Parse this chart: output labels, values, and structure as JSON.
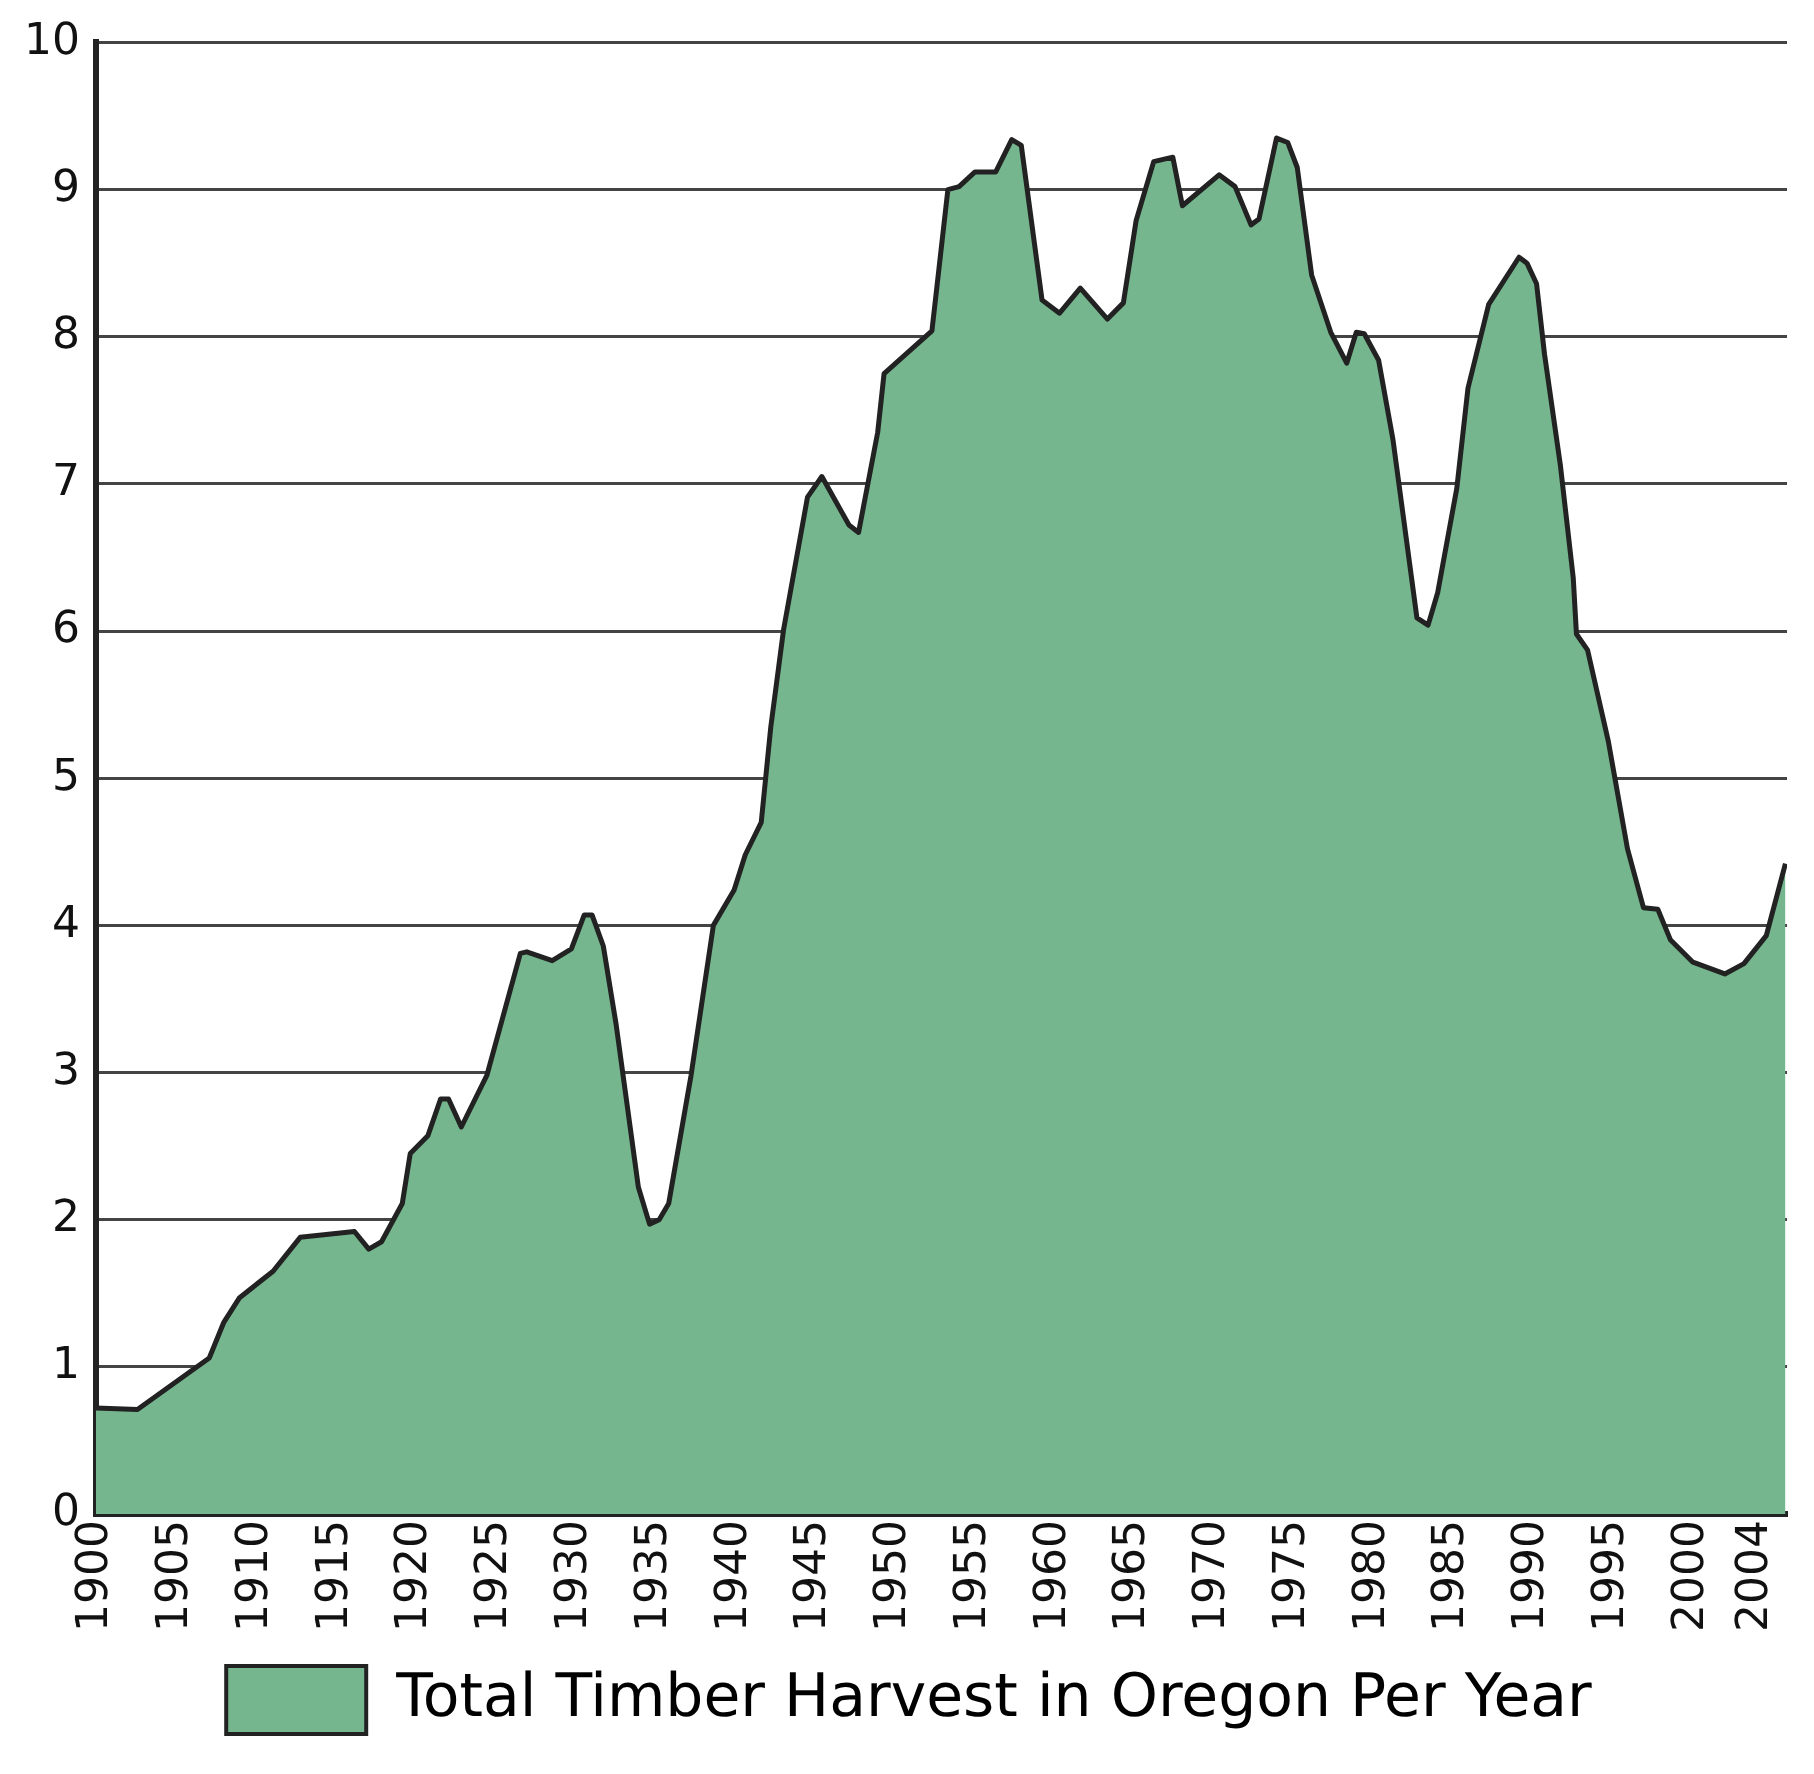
{
  "chart_data": {
    "type": "area",
    "x": [
      1900,
      1902.6,
      1907.1,
      1908,
      1909,
      1911.1,
      1912.8,
      1916.2,
      1917.1,
      1917.9,
      1919.2,
      1919.7,
      1920.8,
      1921.6,
      1922.1,
      1922.9,
      1924.5,
      1926.6,
      1927,
      1928.6,
      1929.8,
      1930.6,
      1931.1,
      1931.8,
      1932.6,
      1934,
      1934.7,
      1935.3,
      1935.9,
      1937.3,
      1938.7,
      1940,
      1940.7,
      1941.7,
      1942.3,
      1943.1,
      1944.6,
      1945.5,
      1947.2,
      1947.8,
      1949,
      1949.4,
      1952.4,
      1953.4,
      1954.1,
      1955.1,
      1956.4,
      1957.4,
      1958,
      1959.3,
      1960.4,
      1961.7,
      1963.4,
      1964.4,
      1965.2,
      1966.3,
      1967.5,
      1968.1,
      1970.4,
      1971.4,
      1972.4,
      1972.9,
      1974,
      1974.7,
      1975.3,
      1976.2,
      1977.4,
      1978.4,
      1979,
      1979.5,
      1980.4,
      1981.3,
      1982.8,
      1983.5,
      1984.1,
      1985.3,
      1986,
      1987.3,
      1989.2,
      1989.7,
      1990.3,
      1990.8,
      1991.8,
      1992.6,
      1992.8,
      1993.5,
      1994.8,
      1996,
      1997,
      1997.9,
      1998.7,
      2000.1,
      2002.1,
      2003.3,
      2004.7,
      2005.9
    ],
    "series": [
      {
        "name": "Total Timber Harvest in Oregon Per Year",
        "color": "#75b68e",
        "values": [
          0.72,
          0.71,
          1.06,
          1.3,
          1.47,
          1.65,
          1.88,
          1.92,
          1.8,
          1.85,
          2.11,
          2.45,
          2.57,
          2.82,
          2.82,
          2.63,
          2.98,
          3.81,
          3.82,
          3.76,
          3.84,
          4.07,
          4.07,
          3.86,
          3.33,
          2.22,
          1.97,
          2,
          2.11,
          2.98,
          4,
          4.24,
          4.48,
          4.7,
          5.35,
          6.01,
          6.91,
          7.05,
          6.72,
          6.67,
          7.35,
          7.75,
          8.04,
          9,
          9.02,
          9.12,
          9.12,
          9.34,
          9.3,
          8.25,
          8.16,
          8.33,
          8.12,
          8.23,
          8.79,
          9.19,
          9.22,
          8.89,
          9.1,
          9.02,
          8.76,
          8.8,
          9.35,
          9.32,
          9.15,
          8.42,
          8.03,
          7.82,
          8.03,
          8.02,
          7.84,
          7.3,
          6.09,
          6.04,
          6.26,
          6.97,
          7.65,
          8.22,
          8.54,
          8.5,
          8.36,
          7.88,
          7.12,
          6.36,
          5.98,
          5.87,
          5.25,
          4.52,
          4.12,
          4.11,
          3.9,
          3.75,
          3.67,
          3.74,
          3.93,
          4.42
        ]
      }
    ],
    "xlim": [
      1900,
      2006
    ],
    "xticks": [
      1900,
      1905,
      1910,
      1915,
      1920,
      1925,
      1930,
      1935,
      1940,
      1945,
      1950,
      1955,
      1960,
      1965,
      1970,
      1975,
      1980,
      1985,
      1990,
      1995,
      2000,
      2004
    ],
    "ylim": [
      0,
      10
    ],
    "yticks": [
      0,
      1,
      2,
      3,
      4,
      5,
      6,
      7,
      8,
      9,
      10
    ],
    "grid": "y",
    "legend": "bottom",
    "marker": "none",
    "line_style": "solid"
  }
}
